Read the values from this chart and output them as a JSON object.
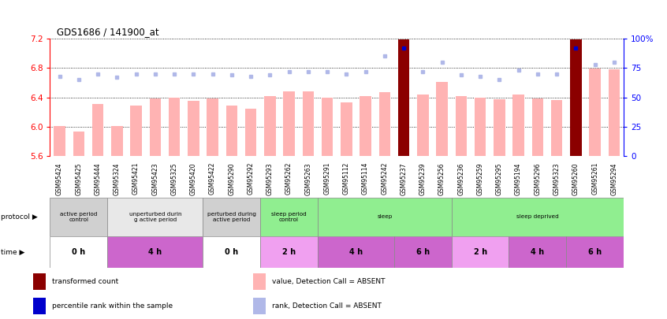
{
  "title": "GDS1686 / 141900_at",
  "samples": [
    "GSM95424",
    "GSM95425",
    "GSM95444",
    "GSM95324",
    "GSM95421",
    "GSM95423",
    "GSM95325",
    "GSM95420",
    "GSM95422",
    "GSM95290",
    "GSM95292",
    "GSM95293",
    "GSM95262",
    "GSM95263",
    "GSM95291",
    "GSM95112",
    "GSM95114",
    "GSM95242",
    "GSM95237",
    "GSM95239",
    "GSM95256",
    "GSM95236",
    "GSM95259",
    "GSM95295",
    "GSM95194",
    "GSM95296",
    "GSM95323",
    "GSM95260",
    "GSM95261",
    "GSM95294"
  ],
  "bar_values": [
    6.01,
    5.94,
    6.31,
    6.01,
    6.29,
    6.38,
    6.4,
    6.35,
    6.38,
    6.29,
    6.25,
    6.42,
    6.48,
    6.48,
    6.4,
    6.33,
    6.42,
    6.47,
    7.18,
    6.44,
    6.61,
    6.42,
    6.39,
    6.37,
    6.44,
    6.38,
    6.36,
    7.18,
    6.79,
    6.78
  ],
  "rank_values": [
    68,
    65,
    70,
    67,
    70,
    70,
    70,
    70,
    70,
    69,
    68,
    69,
    72,
    72,
    72,
    70,
    72,
    85,
    92,
    72,
    80,
    69,
    68,
    65,
    73,
    70,
    70,
    92,
    78,
    80
  ],
  "present_mask": [
    false,
    false,
    false,
    false,
    false,
    false,
    false,
    false,
    false,
    false,
    false,
    false,
    false,
    false,
    false,
    false,
    false,
    false,
    true,
    false,
    false,
    false,
    false,
    false,
    false,
    false,
    false,
    true,
    false,
    false
  ],
  "ylim_left": [
    5.6,
    7.2
  ],
  "ylim_right": [
    0,
    100
  ],
  "yticks_left": [
    5.6,
    6.0,
    6.4,
    6.8,
    7.2
  ],
  "yticks_right": [
    0,
    25,
    50,
    75,
    100
  ],
  "ytick_labels_right": [
    "0",
    "25",
    "50",
    "75",
    "100%"
  ],
  "bar_color_absent": "#ffb3b3",
  "bar_color_present": "#8b0000",
  "rank_color_absent": "#b0b8e8",
  "rank_color_present": "#0000cc",
  "protocol_groups": [
    {
      "label": "active period\ncontrol",
      "start": 0,
      "end": 3,
      "color": "#d0d0d0"
    },
    {
      "label": "unperturbed durin\ng active period",
      "start": 3,
      "end": 8,
      "color": "#e8e8e8"
    },
    {
      "label": "perturbed during\nactive period",
      "start": 8,
      "end": 11,
      "color": "#d0d0d0"
    },
    {
      "label": "sleep period\ncontrol",
      "start": 11,
      "end": 14,
      "color": "#90ee90"
    },
    {
      "label": "sleep",
      "start": 14,
      "end": 21,
      "color": "#90ee90"
    },
    {
      "label": "sleep deprived",
      "start": 21,
      "end": 30,
      "color": "#90ee90"
    }
  ],
  "time_groups": [
    {
      "label": "0 h",
      "start": 0,
      "end": 3,
      "color": "#ffffff"
    },
    {
      "label": "4 h",
      "start": 3,
      "end": 8,
      "color": "#cc66cc"
    },
    {
      "label": "0 h",
      "start": 8,
      "end": 11,
      "color": "#ffffff"
    },
    {
      "label": "2 h",
      "start": 11,
      "end": 14,
      "color": "#f0a0f0"
    },
    {
      "label": "4 h",
      "start": 14,
      "end": 18,
      "color": "#cc66cc"
    },
    {
      "label": "6 h",
      "start": 18,
      "end": 21,
      "color": "#cc66cc"
    },
    {
      "label": "2 h",
      "start": 21,
      "end": 24,
      "color": "#f0a0f0"
    },
    {
      "label": "4 h",
      "start": 24,
      "end": 27,
      "color": "#cc66cc"
    },
    {
      "label": "6 h",
      "start": 27,
      "end": 30,
      "color": "#cc66cc"
    }
  ],
  "legend_items": [
    {
      "label": "transformed count",
      "color": "#8b0000",
      "row": 0,
      "col": 0
    },
    {
      "label": "percentile rank within the sample",
      "color": "#0000cc",
      "row": 1,
      "col": 0
    },
    {
      "label": "value, Detection Call = ABSENT",
      "color": "#ffb3b3",
      "row": 0,
      "col": 1
    },
    {
      "label": "rank, Detection Call = ABSENT",
      "color": "#b0b8e8",
      "row": 1,
      "col": 1
    }
  ]
}
